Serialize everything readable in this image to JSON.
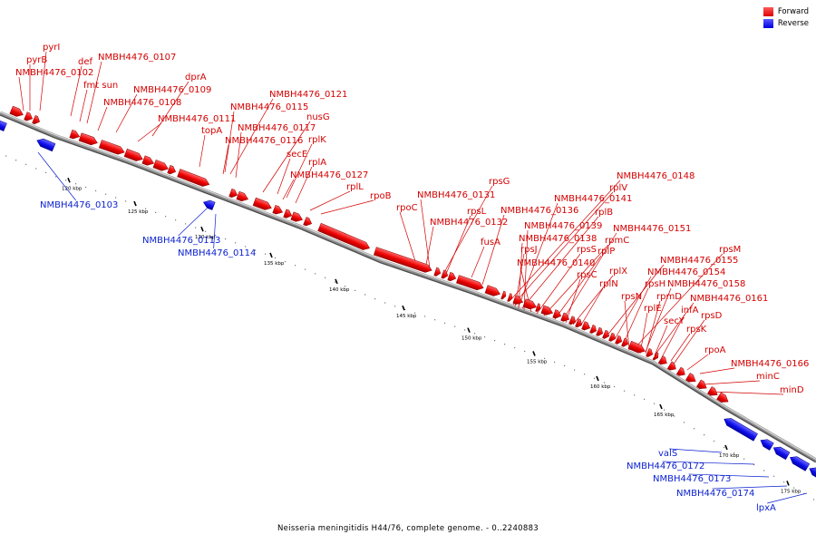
{
  "caption": "Neisseria meningitidis H44/76, complete genome. - 0..2240883",
  "legend": [
    {
      "label": "Forward",
      "color": "#ff0000"
    },
    {
      "label": "Reverse",
      "color": "#0000ff"
    }
  ],
  "ticks": [
    "120 kbp",
    "125 kbp",
    "130 kbp",
    "135 kbp",
    "140 kbp",
    "145 kbp",
    "150 kbp",
    "155 kbp",
    "160 kbp",
    "165 kbp",
    "170 kbp",
    "175 kbp"
  ],
  "forward_genes": [
    "pyrI",
    "pyrB",
    "NMBH4476_0102",
    "def",
    "fmt sun",
    "NMBH4476_0107",
    "dprA",
    "NMBH4476_0109",
    "NMBH4476_0108",
    "NMBH4476_0111",
    "topA",
    "NMBH4476_0121",
    "NMBH4476_0115",
    "nusG",
    "NMBH4476_0117",
    "rplK",
    "NMBH4476_0116",
    "secE",
    "rplA",
    "NMBH4476_0127",
    "rplL",
    "rpoB",
    "rpsG",
    "NMBH4476_0131",
    "rpoC",
    "rpsL",
    "NMBH4476_0132",
    "NMBH4476_0136",
    "fusA",
    "NMBH4476_0148",
    "rplV",
    "NMBH4476_0141",
    "rplB",
    "NMBH4476_0139",
    "rpsJ",
    "NMBH4476_0138",
    "rpsS",
    "rpmC",
    "NMBH4476_0140",
    "rplP",
    "NMBH4476_0151",
    "rpsC",
    "rplX",
    "rplN",
    "NMBH4476_0155",
    "rpsM",
    "NMBH4476_0154",
    "rpsH",
    "NMBH4476_0158",
    "rpsN",
    "rpmD",
    "NMBH4476_0161",
    "rplE",
    "infA",
    "secY",
    "rpsD",
    "rpsK",
    "rpoA",
    "NMBH4476_0166",
    "minC",
    "minD"
  ],
  "reverse_genes": [
    "NMBH4476_0103",
    "NMBH4476_0113",
    "NMBH4476_0114",
    "valS",
    "NMBH4476_0172",
    "NMBH4476_0173",
    "NMBH4476_0174",
    "lpxA"
  ]
}
